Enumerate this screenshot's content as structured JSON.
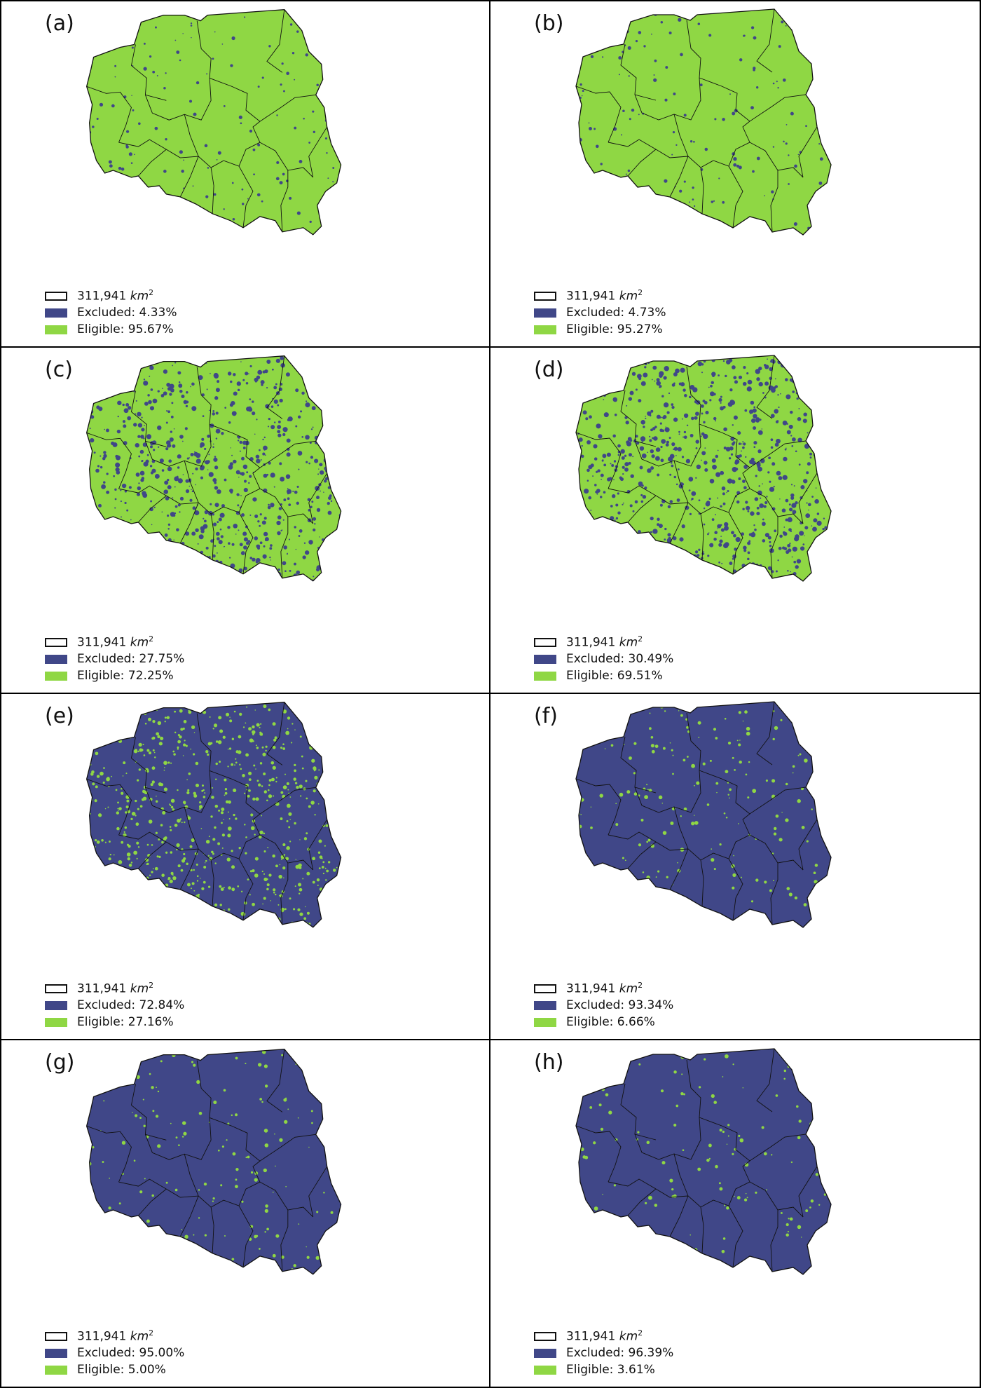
{
  "colors": {
    "excluded": "#404788",
    "eligible": "#8fd744",
    "border": "#111111"
  },
  "area_value": "311,941",
  "area_unit": "km",
  "area_exp": "2",
  "panels": [
    {
      "label": "(a)",
      "excluded_text": "Excluded: 4.33%",
      "eligible_text": "Eligible: 95.67%",
      "excluded_pct": 4.33
    },
    {
      "label": "(b)",
      "excluded_text": "Excluded: 4.73%",
      "eligible_text": "Eligible: 95.27%",
      "excluded_pct": 4.73
    },
    {
      "label": "(c)",
      "excluded_text": "Excluded: 27.75%",
      "eligible_text": "Eligible: 72.25%",
      "excluded_pct": 27.75
    },
    {
      "label": "(d)",
      "excluded_text": "Excluded: 30.49%",
      "eligible_text": "Eligible: 69.51%",
      "excluded_pct": 30.49
    },
    {
      "label": "(e)",
      "excluded_text": "Excluded: 72.84%",
      "eligible_text": "Eligible: 27.16%",
      "excluded_pct": 72.84
    },
    {
      "label": "(f)",
      "excluded_text": "Excluded: 93.34%",
      "eligible_text": "Eligible: 6.66%",
      "excluded_pct": 93.34
    },
    {
      "label": "(g)",
      "excluded_text": "Excluded: 95.00%",
      "eligible_text": "Eligible: 5.00%",
      "excluded_pct": 95.0
    },
    {
      "label": "(h)",
      "excluded_text": "Excluded: 96.39%",
      "eligible_text": "Eligible: 3.61%",
      "excluded_pct": 96.39
    }
  ]
}
